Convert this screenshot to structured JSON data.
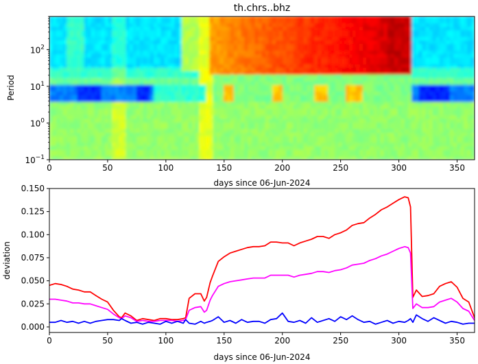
{
  "chart_data": [
    {
      "type": "heatmap",
      "title": "th.chrs..bhz",
      "xlabel": "days since 06-Jun-2024",
      "ylabel": "Period",
      "xlim": [
        0,
        365
      ],
      "ylim": [
        0.1,
        800
      ],
      "yscale": "log",
      "xticks": [
        0,
        50,
        100,
        150,
        200,
        250,
        300,
        350
      ],
      "xtick_labels": [
        "0",
        "50",
        "100",
        "150",
        "200",
        "250",
        "300",
        "350"
      ],
      "yticks": [
        0.1,
        1,
        10,
        100
      ],
      "ytick_labels": [
        "10",
        "10",
        "10",
        "10"
      ],
      "ytick_exponents": [
        "−1",
        "0",
        "1",
        "2"
      ],
      "colormap": "jet",
      "description_of_values": "low (blue) band near period 5-10 outside days 140-310; high (orange/red) block for periods above ~20 between days ~138 and ~311, increasing toward day 300; green elsewhere"
    },
    {
      "type": "line",
      "xlabel": "days since 06-Jun-2024",
      "ylabel": "deviation",
      "xlim": [
        0,
        365
      ],
      "ylim": [
        -0.006,
        0.15
      ],
      "xticks": [
        0,
        50,
        100,
        150,
        200,
        250,
        300,
        350
      ],
      "xtick_labels": [
        "0",
        "50",
        "100",
        "150",
        "200",
        "250",
        "300",
        "350"
      ],
      "yticks": [
        0.0,
        0.025,
        0.05,
        0.075,
        0.1,
        0.125,
        0.15
      ],
      "ytick_labels": [
        "0.000",
        "0.025",
        "0.050",
        "0.075",
        "0.100",
        "0.125",
        "0.150"
      ],
      "grid": false,
      "series": [
        {
          "color": "#ff0000",
          "x": [
            0,
            5,
            10,
            15,
            20,
            25,
            30,
            35,
            40,
            45,
            50,
            55,
            60,
            62,
            65,
            70,
            75,
            80,
            85,
            90,
            95,
            100,
            105,
            110,
            115,
            117,
            120,
            125,
            130,
            133,
            135,
            138,
            140,
            145,
            150,
            155,
            160,
            165,
            170,
            175,
            180,
            185,
            190,
            195,
            200,
            205,
            210,
            215,
            220,
            225,
            230,
            235,
            240,
            245,
            250,
            255,
            260,
            265,
            270,
            275,
            280,
            285,
            290,
            295,
            300,
            305,
            308,
            310,
            312,
            315,
            320,
            325,
            330,
            335,
            340,
            345,
            350,
            355,
            360,
            365
          ],
          "y": [
            0.045,
            0.047,
            0.046,
            0.044,
            0.041,
            0.04,
            0.038,
            0.038,
            0.034,
            0.03,
            0.027,
            0.018,
            0.011,
            0.01,
            0.015,
            0.012,
            0.007,
            0.009,
            0.008,
            0.007,
            0.009,
            0.009,
            0.008,
            0.008,
            0.009,
            0.01,
            0.031,
            0.036,
            0.036,
            0.028,
            0.032,
            0.048,
            0.055,
            0.071,
            0.076,
            0.08,
            0.082,
            0.084,
            0.086,
            0.087,
            0.087,
            0.088,
            0.092,
            0.092,
            0.091,
            0.091,
            0.088,
            0.091,
            0.093,
            0.095,
            0.098,
            0.098,
            0.096,
            0.1,
            0.102,
            0.105,
            0.11,
            0.112,
            0.113,
            0.118,
            0.122,
            0.127,
            0.13,
            0.134,
            0.138,
            0.141,
            0.14,
            0.13,
            0.032,
            0.04,
            0.033,
            0.034,
            0.036,
            0.044,
            0.047,
            0.049,
            0.043,
            0.031,
            0.027,
            0.01
          ]
        },
        {
          "color": "#ff00ff",
          "x": [
            0,
            5,
            10,
            15,
            20,
            25,
            30,
            35,
            40,
            45,
            50,
            55,
            60,
            62,
            65,
            70,
            75,
            80,
            85,
            90,
            95,
            100,
            105,
            110,
            115,
            117,
            120,
            125,
            130,
            133,
            135,
            138,
            140,
            145,
            150,
            155,
            160,
            165,
            170,
            175,
            180,
            185,
            190,
            195,
            200,
            205,
            210,
            215,
            220,
            225,
            230,
            235,
            240,
            245,
            250,
            255,
            260,
            265,
            270,
            275,
            280,
            285,
            290,
            295,
            300,
            305,
            308,
            310,
            312,
            315,
            320,
            325,
            330,
            335,
            340,
            345,
            350,
            355,
            360,
            365
          ],
          "y": [
            0.03,
            0.03,
            0.029,
            0.028,
            0.026,
            0.026,
            0.025,
            0.025,
            0.023,
            0.021,
            0.019,
            0.014,
            0.01,
            0.009,
            0.012,
            0.01,
            0.006,
            0.007,
            0.006,
            0.006,
            0.007,
            0.007,
            0.007,
            0.006,
            0.007,
            0.008,
            0.018,
            0.021,
            0.022,
            0.016,
            0.018,
            0.029,
            0.034,
            0.044,
            0.047,
            0.049,
            0.05,
            0.051,
            0.052,
            0.053,
            0.053,
            0.053,
            0.056,
            0.056,
            0.056,
            0.056,
            0.054,
            0.056,
            0.057,
            0.058,
            0.06,
            0.06,
            0.059,
            0.061,
            0.062,
            0.064,
            0.067,
            0.068,
            0.069,
            0.072,
            0.074,
            0.077,
            0.079,
            0.082,
            0.085,
            0.087,
            0.086,
            0.08,
            0.02,
            0.025,
            0.021,
            0.021,
            0.022,
            0.027,
            0.029,
            0.031,
            0.027,
            0.02,
            0.017,
            0.007
          ]
        },
        {
          "color": "#0000ff",
          "x": [
            0,
            5,
            10,
            15,
            20,
            25,
            30,
            35,
            40,
            45,
            50,
            55,
            60,
            62,
            65,
            70,
            75,
            80,
            85,
            90,
            95,
            100,
            105,
            110,
            115,
            117,
            120,
            125,
            130,
            133,
            135,
            138,
            140,
            145,
            150,
            155,
            160,
            165,
            170,
            175,
            180,
            185,
            190,
            195,
            200,
            205,
            210,
            215,
            220,
            225,
            230,
            235,
            240,
            245,
            250,
            255,
            260,
            265,
            270,
            275,
            280,
            285,
            290,
            295,
            300,
            305,
            308,
            310,
            312,
            315,
            320,
            325,
            330,
            335,
            340,
            345,
            350,
            355,
            360,
            365
          ],
          "y": [
            0.005,
            0.005,
            0.007,
            0.005,
            0.006,
            0.004,
            0.006,
            0.004,
            0.006,
            0.007,
            0.008,
            0.008,
            0.007,
            0.009,
            0.007,
            0.004,
            0.005,
            0.003,
            0.005,
            0.004,
            0.003,
            0.006,
            0.004,
            0.006,
            0.004,
            0.008,
            0.004,
            0.003,
            0.006,
            0.004,
            0.005,
            0.006,
            0.007,
            0.011,
            0.005,
            0.007,
            0.004,
            0.008,
            0.005,
            0.006,
            0.006,
            0.004,
            0.008,
            0.009,
            0.015,
            0.006,
            0.005,
            0.007,
            0.004,
            0.01,
            0.005,
            0.007,
            0.009,
            0.006,
            0.011,
            0.008,
            0.012,
            0.008,
            0.005,
            0.006,
            0.003,
            0.005,
            0.007,
            0.004,
            0.006,
            0.005,
            0.007,
            0.009,
            0.005,
            0.013,
            0.009,
            0.006,
            0.01,
            0.007,
            0.004,
            0.006,
            0.005,
            0.003,
            0.004,
            0.004
          ]
        }
      ]
    }
  ]
}
